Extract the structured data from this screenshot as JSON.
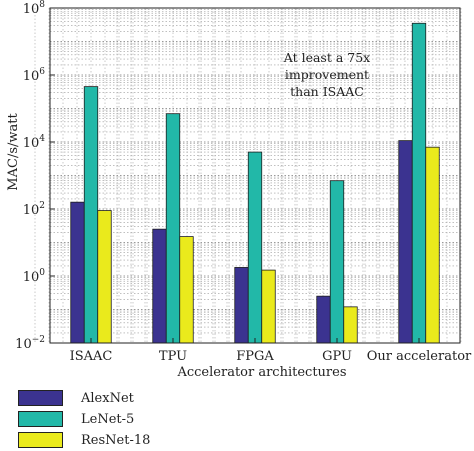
{
  "chart_data": {
    "type": "bar",
    "ylabel": "MAC/s/watt",
    "xlabel": "Accelerator architectures",
    "yscale": "log",
    "ylim": [
      0.01,
      100000000
    ],
    "grid": true,
    "categories": [
      "ISAAC",
      "TPU",
      "FPGA",
      "GPU",
      "Our accelerator"
    ],
    "series": [
      {
        "name": "AlexNet",
        "color": "#3b3390",
        "values": [
          160,
          25,
          1.8,
          0.25,
          11000
        ]
      },
      {
        "name": "LeNet-5",
        "color": "#22b8a8",
        "values": [
          450000,
          70000,
          5000,
          700,
          35000000
        ]
      },
      {
        "name": "ResNet-18",
        "color": "#eaea1c",
        "values": [
          90,
          15,
          1.5,
          0.12,
          7000
        ]
      }
    ],
    "y_ticks": [
      {
        "base": "10",
        "exp": "−2",
        "value": 0.01
      },
      {
        "base": "10",
        "exp": "0",
        "value": 1
      },
      {
        "base": "10",
        "exp": "2",
        "value": 100
      },
      {
        "base": "10",
        "exp": "4",
        "value": 10000
      },
      {
        "base": "10",
        "exp": "6",
        "value": 1000000
      },
      {
        "base": "10",
        "exp": "8",
        "value": 100000000
      }
    ],
    "annotation": [
      "At least a 75x",
      "improvement",
      "than ISAAC"
    ]
  },
  "legend": {
    "items": [
      {
        "label": "AlexNet",
        "color": "#3b3390"
      },
      {
        "label": "LeNet-5",
        "color": "#22b8a8"
      },
      {
        "label": "ResNet-18",
        "color": "#eaea1c"
      }
    ]
  }
}
